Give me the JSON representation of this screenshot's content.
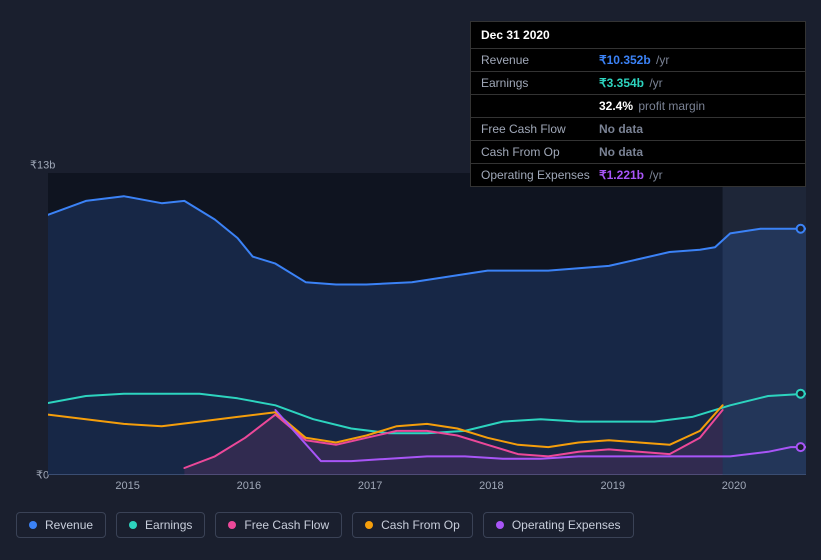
{
  "tooltip": {
    "date": "Dec 31 2020",
    "rows": [
      {
        "label": "Revenue",
        "value": "₹10.352b",
        "unit": "/yr",
        "color": "#3b82f6"
      },
      {
        "label": "Earnings",
        "value": "₹3.354b",
        "unit": "/yr",
        "color": "#2dd4bf"
      },
      {
        "label": "",
        "value": "32.4%",
        "unit": "profit margin",
        "color": "#ffffff"
      },
      {
        "label": "Free Cash Flow",
        "value": "No data",
        "unit": "",
        "color": "#7a8294"
      },
      {
        "label": "Cash From Op",
        "value": "No data",
        "unit": "",
        "color": "#7a8294"
      },
      {
        "label": "Operating Expenses",
        "value": "₹1.221b",
        "unit": "/yr",
        "color": "#a855f7"
      }
    ]
  },
  "chart": {
    "type": "area-line",
    "background": "#1a1f2e",
    "plot_bg_left": "#0f1420",
    "plot_bg_right": "#1e2638",
    "forecast_split": 0.89,
    "y_top_label": "₹13b",
    "y_bottom_label": "₹0",
    "y_min": 0,
    "y_max": 13,
    "x_ticks": [
      "2015",
      "2016",
      "2017",
      "2018",
      "2019",
      "2020"
    ],
    "x_tick_positions": [
      0.105,
      0.265,
      0.425,
      0.585,
      0.745,
      0.905
    ],
    "marker_x": 0.985,
    "series": [
      {
        "name": "Revenue",
        "color": "#3b82f6",
        "fill": true,
        "fill_opacity": 0.18,
        "width": 2,
        "points": [
          [
            0.0,
            11.2
          ],
          [
            0.05,
            11.8
          ],
          [
            0.1,
            12.0
          ],
          [
            0.15,
            11.7
          ],
          [
            0.18,
            11.8
          ],
          [
            0.22,
            11.0
          ],
          [
            0.25,
            10.2
          ],
          [
            0.27,
            9.4
          ],
          [
            0.3,
            9.1
          ],
          [
            0.34,
            8.3
          ],
          [
            0.38,
            8.2
          ],
          [
            0.42,
            8.2
          ],
          [
            0.48,
            8.3
          ],
          [
            0.54,
            8.6
          ],
          [
            0.58,
            8.8
          ],
          [
            0.62,
            8.8
          ],
          [
            0.66,
            8.8
          ],
          [
            0.7,
            8.9
          ],
          [
            0.74,
            9.0
          ],
          [
            0.78,
            9.3
          ],
          [
            0.82,
            9.6
          ],
          [
            0.86,
            9.7
          ],
          [
            0.88,
            9.8
          ],
          [
            0.9,
            10.4
          ],
          [
            0.94,
            10.6
          ],
          [
            0.98,
            10.6
          ],
          [
            1.0,
            10.6
          ]
        ]
      },
      {
        "name": "Earnings",
        "color": "#2dd4bf",
        "fill": false,
        "width": 2,
        "points": [
          [
            0.0,
            3.1
          ],
          [
            0.05,
            3.4
          ],
          [
            0.1,
            3.5
          ],
          [
            0.15,
            3.5
          ],
          [
            0.2,
            3.5
          ],
          [
            0.25,
            3.3
          ],
          [
            0.3,
            3.0
          ],
          [
            0.35,
            2.4
          ],
          [
            0.4,
            2.0
          ],
          [
            0.45,
            1.8
          ],
          [
            0.5,
            1.8
          ],
          [
            0.55,
            1.9
          ],
          [
            0.6,
            2.3
          ],
          [
            0.65,
            2.4
          ],
          [
            0.7,
            2.3
          ],
          [
            0.75,
            2.3
          ],
          [
            0.8,
            2.3
          ],
          [
            0.85,
            2.5
          ],
          [
            0.9,
            3.0
          ],
          [
            0.95,
            3.4
          ],
          [
            1.0,
            3.5
          ]
        ]
      },
      {
        "name": "Free Cash Flow",
        "color": "#ec4899",
        "fill": true,
        "fill_opacity": 0.12,
        "width": 2,
        "points": [
          [
            0.18,
            0.3
          ],
          [
            0.22,
            0.8
          ],
          [
            0.26,
            1.6
          ],
          [
            0.3,
            2.6
          ],
          [
            0.34,
            1.5
          ],
          [
            0.38,
            1.3
          ],
          [
            0.42,
            1.6
          ],
          [
            0.46,
            1.9
          ],
          [
            0.5,
            1.9
          ],
          [
            0.54,
            1.7
          ],
          [
            0.58,
            1.3
          ],
          [
            0.62,
            0.9
          ],
          [
            0.66,
            0.8
          ],
          [
            0.7,
            1.0
          ],
          [
            0.74,
            1.1
          ],
          [
            0.78,
            1.0
          ],
          [
            0.82,
            0.9
          ],
          [
            0.86,
            1.6
          ],
          [
            0.89,
            2.8
          ]
        ]
      },
      {
        "name": "Cash From Op",
        "color": "#f59e0b",
        "fill": false,
        "width": 2,
        "points": [
          [
            0.0,
            2.6
          ],
          [
            0.05,
            2.4
          ],
          [
            0.1,
            2.2
          ],
          [
            0.15,
            2.1
          ],
          [
            0.2,
            2.3
          ],
          [
            0.25,
            2.5
          ],
          [
            0.3,
            2.7
          ],
          [
            0.34,
            1.6
          ],
          [
            0.38,
            1.4
          ],
          [
            0.42,
            1.7
          ],
          [
            0.46,
            2.1
          ],
          [
            0.5,
            2.2
          ],
          [
            0.54,
            2.0
          ],
          [
            0.58,
            1.6
          ],
          [
            0.62,
            1.3
          ],
          [
            0.66,
            1.2
          ],
          [
            0.7,
            1.4
          ],
          [
            0.74,
            1.5
          ],
          [
            0.78,
            1.4
          ],
          [
            0.82,
            1.3
          ],
          [
            0.86,
            1.9
          ],
          [
            0.89,
            3.0
          ]
        ]
      },
      {
        "name": "Operating Expenses",
        "color": "#a855f7",
        "fill": false,
        "width": 2,
        "points": [
          [
            0.3,
            2.8
          ],
          [
            0.33,
            1.7
          ],
          [
            0.36,
            0.6
          ],
          [
            0.4,
            0.6
          ],
          [
            0.45,
            0.7
          ],
          [
            0.5,
            0.8
          ],
          [
            0.55,
            0.8
          ],
          [
            0.6,
            0.7
          ],
          [
            0.65,
            0.7
          ],
          [
            0.7,
            0.8
          ],
          [
            0.75,
            0.8
          ],
          [
            0.8,
            0.8
          ],
          [
            0.85,
            0.8
          ],
          [
            0.9,
            0.8
          ],
          [
            0.95,
            1.0
          ],
          [
            0.98,
            1.2
          ],
          [
            1.0,
            1.2
          ]
        ]
      }
    ],
    "end_markers": [
      {
        "color": "#3b82f6",
        "y": 10.6
      },
      {
        "color": "#2dd4bf",
        "y": 3.5
      },
      {
        "color": "#a855f7",
        "y": 1.2
      }
    ]
  },
  "legend": [
    {
      "label": "Revenue",
      "color": "#3b82f6"
    },
    {
      "label": "Earnings",
      "color": "#2dd4bf"
    },
    {
      "label": "Free Cash Flow",
      "color": "#ec4899"
    },
    {
      "label": "Cash From Op",
      "color": "#f59e0b"
    },
    {
      "label": "Operating Expenses",
      "color": "#a855f7"
    }
  ]
}
